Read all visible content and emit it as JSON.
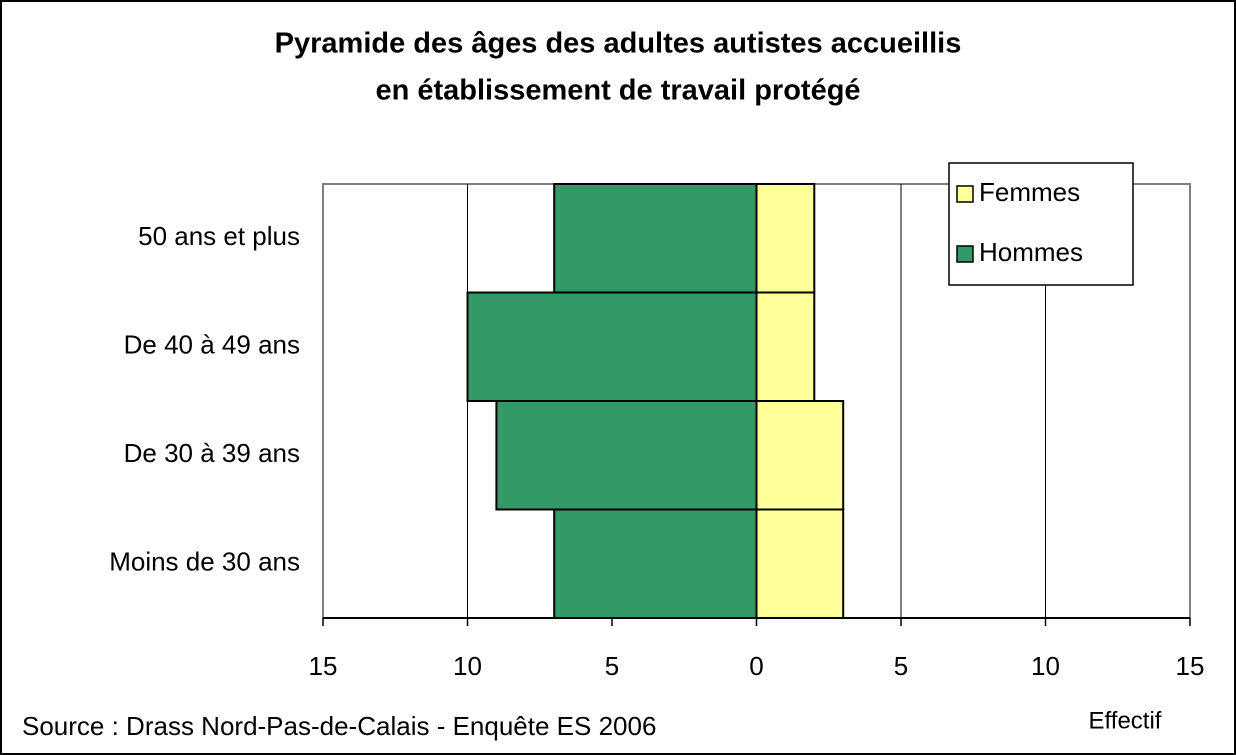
{
  "chart_data": {
    "type": "bar",
    "orientation": "horizontal",
    "stacked": true,
    "title": "Pyramide des âges des adultes autistes accueillis",
    "subtitle": "en établissement de travail protégé",
    "categories": [
      "50 ans et plus",
      "De 40 à 49 ans",
      "De 30 à 39 ans",
      "Moins de 30 ans"
    ],
    "series": [
      {
        "name": "Femmes",
        "color": "#ffff99",
        "values": [
          2,
          2,
          3,
          3
        ]
      },
      {
        "name": "Hommes",
        "color": "#339966",
        "values": [
          -7,
          -10,
          -9,
          -7
        ]
      }
    ],
    "xlim": [
      -15,
      15
    ],
    "xticks": [
      {
        "value": -15,
        "label": "15"
      },
      {
        "value": -10,
        "label": "10"
      },
      {
        "value": -5,
        "label": "5"
      },
      0,
      5,
      10,
      15
    ],
    "xlabel": "Effectif",
    "source": "Source : Drass Nord-Pas-de-Calais - Enquête ES 2006",
    "grid": true,
    "legend": "top-right"
  }
}
